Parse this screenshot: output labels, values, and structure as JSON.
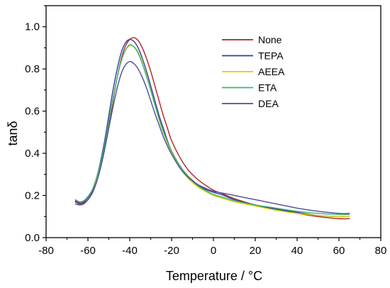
{
  "chart_data": {
    "type": "line",
    "xlabel": "Temperature / °C",
    "ylabel": "tanδ",
    "xlim": [
      -80,
      80
    ],
    "ylim": [
      0.0,
      1.1
    ],
    "x_ticks": [
      -80,
      -60,
      -40,
      -20,
      0,
      20,
      40,
      60,
      80
    ],
    "x_tick_labels": [
      "-80",
      "-60",
      "-40",
      "-20",
      "0",
      "20",
      "40",
      "60",
      "80"
    ],
    "y_ticks": [
      0.0,
      0.2,
      0.4,
      0.6,
      0.8,
      1.0
    ],
    "y_tick_labels": [
      "0.0",
      "0.2",
      "0.4",
      "0.6",
      "0.8",
      "1.0"
    ],
    "grid": false,
    "legend_position": "top-right",
    "series": [
      {
        "name": "None",
        "color": "#b22222",
        "x": [
          -66,
          -64,
          -62,
          -60,
          -58,
          -56,
          -54,
          -52,
          -50,
          -48,
          -46,
          -44,
          -42,
          -40,
          -38,
          -36,
          -34,
          -32,
          -30,
          -28,
          -26,
          -24,
          -22,
          -20,
          -16,
          -12,
          -8,
          -4,
          0,
          5,
          10,
          20,
          30,
          40,
          50,
          60,
          65
        ],
        "y": [
          0.17,
          0.16,
          0.165,
          0.18,
          0.21,
          0.26,
          0.33,
          0.42,
          0.53,
          0.65,
          0.76,
          0.85,
          0.91,
          0.94,
          0.948,
          0.935,
          0.9,
          0.85,
          0.79,
          0.72,
          0.65,
          0.58,
          0.52,
          0.46,
          0.38,
          0.32,
          0.28,
          0.25,
          0.225,
          0.205,
          0.185,
          0.155,
          0.135,
          0.115,
          0.1,
          0.09,
          0.09
        ]
      },
      {
        "name": "TEPA",
        "color": "#2e3f9e",
        "x": [
          -66,
          -64,
          -62,
          -60,
          -58,
          -56,
          -54,
          -52,
          -50,
          -48,
          -46,
          -44,
          -42,
          -40,
          -38,
          -36,
          -34,
          -32,
          -30,
          -28,
          -26,
          -24,
          -22,
          -20,
          -16,
          -12,
          -8,
          -4,
          0,
          5,
          10,
          20,
          30,
          40,
          50,
          60,
          65
        ],
        "y": [
          0.175,
          0.165,
          0.17,
          0.19,
          0.22,
          0.28,
          0.36,
          0.46,
          0.58,
          0.7,
          0.8,
          0.88,
          0.925,
          0.94,
          0.93,
          0.9,
          0.85,
          0.79,
          0.72,
          0.65,
          0.58,
          0.52,
          0.46,
          0.41,
          0.34,
          0.29,
          0.255,
          0.23,
          0.215,
          0.2,
          0.18,
          0.155,
          0.135,
          0.12,
          0.105,
          0.1,
          0.1
        ]
      },
      {
        "name": "AEEA",
        "color": "#d9d000",
        "x": [
          -66,
          -64,
          -62,
          -60,
          -58,
          -56,
          -54,
          -52,
          -50,
          -48,
          -46,
          -44,
          -42,
          -40,
          -38,
          -36,
          -34,
          -32,
          -30,
          -28,
          -26,
          -24,
          -22,
          -20,
          -16,
          -12,
          -8,
          -4,
          0,
          5,
          10,
          20,
          30,
          40,
          50,
          60,
          65
        ],
        "y": [
          0.18,
          0.17,
          0.175,
          0.195,
          0.225,
          0.28,
          0.35,
          0.44,
          0.55,
          0.66,
          0.76,
          0.84,
          0.89,
          0.91,
          0.905,
          0.88,
          0.83,
          0.77,
          0.7,
          0.63,
          0.56,
          0.5,
          0.45,
          0.4,
          0.33,
          0.28,
          0.245,
          0.22,
          0.2,
          0.185,
          0.17,
          0.15,
          0.13,
          0.115,
          0.105,
          0.1,
          0.1
        ]
      },
      {
        "name": "ETA",
        "color": "#3cb371",
        "x": [
          -66,
          -64,
          -62,
          -60,
          -58,
          -56,
          -54,
          -52,
          -50,
          -48,
          -46,
          -44,
          -42,
          -40,
          -38,
          -36,
          -34,
          -32,
          -30,
          -28,
          -26,
          -24,
          -22,
          -20,
          -16,
          -12,
          -8,
          -4,
          0,
          5,
          10,
          20,
          30,
          40,
          50,
          60,
          65
        ],
        "y": [
          0.18,
          0.17,
          0.175,
          0.195,
          0.225,
          0.28,
          0.35,
          0.44,
          0.55,
          0.66,
          0.76,
          0.84,
          0.89,
          0.915,
          0.905,
          0.875,
          0.825,
          0.765,
          0.7,
          0.63,
          0.565,
          0.505,
          0.455,
          0.41,
          0.34,
          0.29,
          0.25,
          0.225,
          0.205,
          0.19,
          0.175,
          0.155,
          0.14,
          0.125,
          0.115,
          0.11,
          0.11
        ]
      },
      {
        "name": "DEA",
        "color": "#4b4b9a",
        "x": [
          -66,
          -64,
          -62,
          -60,
          -58,
          -56,
          -54,
          -52,
          -50,
          -48,
          -46,
          -44,
          -42,
          -40,
          -38,
          -36,
          -34,
          -32,
          -30,
          -28,
          -26,
          -24,
          -22,
          -20,
          -16,
          -12,
          -8,
          -4,
          0,
          5,
          10,
          20,
          30,
          40,
          50,
          60,
          65
        ],
        "y": [
          0.16,
          0.155,
          0.16,
          0.18,
          0.21,
          0.26,
          0.33,
          0.42,
          0.52,
          0.62,
          0.71,
          0.78,
          0.82,
          0.835,
          0.825,
          0.8,
          0.76,
          0.71,
          0.65,
          0.59,
          0.535,
          0.48,
          0.435,
          0.395,
          0.33,
          0.285,
          0.255,
          0.235,
          0.22,
          0.21,
          0.2,
          0.18,
          0.16,
          0.14,
          0.125,
          0.115,
          0.115
        ]
      }
    ]
  }
}
